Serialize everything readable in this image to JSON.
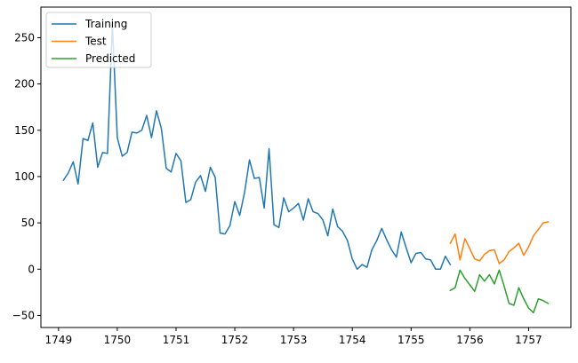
{
  "chart_data": {
    "type": "line",
    "title": "",
    "xlabel": "",
    "ylabel": "",
    "xlim": [
      1748.7,
      1757.72
    ],
    "ylim": [
      -63,
      283
    ],
    "x_ticks": [
      1749,
      1750,
      1751,
      1752,
      1753,
      1754,
      1755,
      1756,
      1757
    ],
    "y_ticks": [
      -50,
      0,
      50,
      100,
      150,
      200,
      250
    ],
    "grid": false,
    "legend_position": "top-left",
    "series": [
      {
        "name": "Training",
        "color": "#1f77b4",
        "x": [
          1749.083,
          1749.167,
          1749.25,
          1749.333,
          1749.417,
          1749.5,
          1749.583,
          1749.667,
          1749.75,
          1749.833,
          1749.917,
          1750.0,
          1750.083,
          1750.167,
          1750.25,
          1750.333,
          1750.417,
          1750.5,
          1750.583,
          1750.667,
          1750.75,
          1750.833,
          1750.917,
          1751.0,
          1751.083,
          1751.167,
          1751.25,
          1751.333,
          1751.417,
          1751.5,
          1751.583,
          1751.667,
          1751.75,
          1751.833,
          1751.917,
          1752.0,
          1752.083,
          1752.167,
          1752.25,
          1752.333,
          1752.417,
          1752.5,
          1752.583,
          1752.667,
          1752.75,
          1752.833,
          1752.917,
          1753.0,
          1753.083,
          1753.167,
          1753.25,
          1753.333,
          1753.417,
          1753.5,
          1753.583,
          1753.667,
          1753.75,
          1753.833,
          1753.917,
          1754.0,
          1754.083,
          1754.167,
          1754.25,
          1754.333,
          1754.417,
          1754.5,
          1754.583,
          1754.667,
          1754.75,
          1754.833,
          1754.917,
          1755.0,
          1755.083,
          1755.167,
          1755.25,
          1755.333,
          1755.417,
          1755.5,
          1755.583,
          1755.667
        ],
        "y": [
          96,
          104,
          116,
          92,
          141,
          139,
          158,
          110,
          126,
          125,
          264,
          142,
          122,
          126,
          148,
          147,
          150,
          166,
          142,
          171,
          152,
          109,
          105,
          125,
          117,
          72,
          75,
          94,
          101,
          84,
          110,
          99,
          39,
          38,
          47,
          73,
          58,
          83,
          118,
          98,
          99,
          66,
          130,
          48,
          45,
          77,
          62,
          66,
          71,
          53,
          76,
          62,
          60,
          53,
          36,
          65,
          46,
          41,
          31,
          11,
          0,
          5,
          2,
          21,
          31,
          44,
          32,
          21,
          13,
          40,
          23,
          7,
          17,
          18,
          11,
          10,
          0,
          0,
          14,
          5
        ]
      },
      {
        "name": "Test",
        "color": "#ff7f0e",
        "x": [
          1755.667,
          1755.75,
          1755.833,
          1755.917,
          1756.0,
          1756.083,
          1756.167,
          1756.25,
          1756.333,
          1756.417,
          1756.5,
          1756.583,
          1756.667,
          1756.75,
          1756.833,
          1756.917,
          1757.0,
          1757.083,
          1757.167,
          1757.25,
          1757.333
        ],
        "y": [
          28,
          38,
          10,
          33,
          22,
          11,
          9,
          16,
          20,
          21,
          6,
          10,
          19,
          23,
          28,
          15,
          24,
          36,
          43,
          50,
          51
        ]
      },
      {
        "name": "Predicted",
        "color": "#2ca02c",
        "x": [
          1755.667,
          1755.75,
          1755.833,
          1755.917,
          1756.0,
          1756.083,
          1756.167,
          1756.25,
          1756.333,
          1756.417,
          1756.5,
          1756.583,
          1756.667,
          1756.75,
          1756.833,
          1756.917,
          1757.0,
          1757.083,
          1757.167,
          1757.25,
          1757.333
        ],
        "y": [
          -23,
          -20,
          -1,
          -10,
          -17,
          -24,
          -6,
          -13,
          -6,
          -16,
          -1,
          -18,
          -37,
          -39,
          -20,
          -32,
          -42,
          -47,
          -32,
          -34,
          -37
        ]
      }
    ]
  }
}
